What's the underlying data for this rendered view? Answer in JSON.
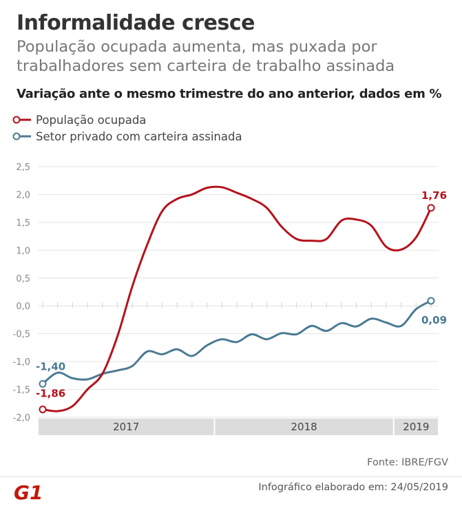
{
  "header": {
    "title": "Informalidade cresce",
    "subtitle": "População ocupada aumenta, mas puxada por trabalhadores sem carteira de trabalho assinada"
  },
  "chart_caption": "Variação ante o mesmo trimestre do ano anterior, dados em %",
  "colors": {
    "red": "#b5121b",
    "blue": "#4b7a93",
    "grid": "#e3e3e3",
    "axis_text": "#888888",
    "band": "#dcdcdc",
    "band_text": "#444444"
  },
  "footer": {
    "source": "Fonte: IBRE/FGV",
    "note": "Infográfico elaborado em: 24/05/2019",
    "logo_text": "G1"
  },
  "chart_data": {
    "type": "line",
    "ylim": [
      -2.0,
      2.5
    ],
    "yticks": [
      {
        "value": 2.5,
        "label": "2,5"
      },
      {
        "value": 2.0,
        "label": "2,0"
      },
      {
        "value": 1.5,
        "label": "1,5"
      },
      {
        "value": 1.0,
        "label": "1,0"
      },
      {
        "value": 0.5,
        "label": "0,5"
      },
      {
        "value": 0.0,
        "label": "0,0"
      },
      {
        "value": -0.5,
        "label": "-0,5"
      },
      {
        "value": -1.0,
        "label": "-1,0"
      },
      {
        "value": -1.5,
        "label": "-1,5"
      },
      {
        "value": -2.0,
        "label": "-2,0"
      }
    ],
    "grid": true,
    "periods": [
      {
        "label": "2017",
        "start": 0,
        "end": 12
      },
      {
        "label": "2018",
        "start": 12,
        "end": 24
      },
      {
        "label": "2019",
        "start": 24,
        "end": 27
      }
    ],
    "series": [
      {
        "name": "População ocupada",
        "color": "#b5121b",
        "values": [
          -1.86,
          -1.89,
          -1.8,
          -1.5,
          -1.22,
          -0.55,
          0.35,
          1.1,
          1.7,
          1.92,
          2.0,
          2.12,
          2.13,
          2.03,
          1.92,
          1.76,
          1.42,
          1.2,
          1.17,
          1.2,
          1.53,
          1.55,
          1.44,
          1.06,
          1.01,
          1.23,
          1.76
        ],
        "start_label": "-1,86",
        "end_label": "1,76"
      },
      {
        "name": "Setor privado com carteira assinada",
        "color": "#4b7a93",
        "values": [
          -1.4,
          -1.2,
          -1.3,
          -1.32,
          -1.22,
          -1.16,
          -1.08,
          -0.82,
          -0.87,
          -0.78,
          -0.9,
          -0.71,
          -0.6,
          -0.65,
          -0.51,
          -0.6,
          -0.49,
          -0.51,
          -0.36,
          -0.45,
          -0.31,
          -0.37,
          -0.23,
          -0.3,
          -0.36,
          -0.06,
          0.09
        ],
        "start_label": "-1,40",
        "end_label": "0,09"
      }
    ]
  }
}
